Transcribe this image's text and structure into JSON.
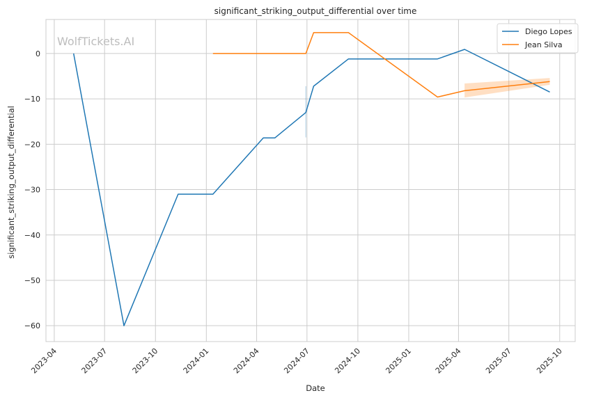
{
  "chart_data": {
    "type": "line",
    "title": "significant_striking_output_differential over time",
    "xlabel": "Date",
    "ylabel": "significant_striking_output_differential",
    "watermark": "WolfTickets.AI",
    "xlim": [
      "2023-03-17",
      "2025-10-29"
    ],
    "ylim": [
      -63.5,
      7.5
    ],
    "x_ticks": [
      "2023-04",
      "2023-07",
      "2023-10",
      "2024-01",
      "2024-04",
      "2024-07",
      "2024-10",
      "2025-01",
      "2025-04",
      "2025-07",
      "2025-10"
    ],
    "y_ticks": [
      0,
      -10,
      -20,
      -30,
      -40,
      -50,
      -60
    ],
    "y_tick_labels": [
      "0",
      "−10",
      "−20",
      "−30",
      "−40",
      "−50",
      "−60"
    ],
    "grid": true,
    "legend_position": "top-right",
    "series": [
      {
        "name": "Diego Lopes",
        "color": "#1f77b4",
        "points": [
          {
            "x": "2023-05-06",
            "y": 0
          },
          {
            "x": "2023-08-05",
            "y": -60
          },
          {
            "x": "2023-11-11",
            "y": -31
          },
          {
            "x": "2024-01-13",
            "y": -31
          },
          {
            "x": "2024-04-13",
            "y": -18.6
          },
          {
            "x": "2024-05-04",
            "y": -18.6
          },
          {
            "x": "2024-06-29",
            "y": -13
          },
          {
            "x": "2024-07-13",
            "y": -7.2
          },
          {
            "x": "2024-09-14",
            "y": -1.2
          },
          {
            "x": "2025-02-22",
            "y": -1.2
          },
          {
            "x": "2025-04-12",
            "y": 0.9
          },
          {
            "x": "2025-09-13",
            "y": -8.5
          }
        ],
        "ci_bands": [
          {
            "x": [
              "2024-06-29",
              "2024-06-29"
            ],
            "lower": [
              -18.5,
              -18.5
            ],
            "upper": [
              -7.2,
              -7.2
            ]
          }
        ]
      },
      {
        "name": "Jean Silva",
        "color": "#ff7f0e",
        "points": [
          {
            "x": "2024-01-13",
            "y": 0
          },
          {
            "x": "2024-06-29",
            "y": 0
          },
          {
            "x": "2024-07-13",
            "y": 4.6
          },
          {
            "x": "2024-09-14",
            "y": 4.6
          },
          {
            "x": "2025-02-22",
            "y": -9.6
          },
          {
            "x": "2025-04-12",
            "y": -8.2
          },
          {
            "x": "2025-09-13",
            "y": -6.2
          }
        ],
        "ci_bands": [
          {
            "x": [
              "2025-04-12",
              "2025-09-13"
            ],
            "lower": [
              -9.7,
              -6.9
            ],
            "upper": [
              -6.6,
              -5.4
            ]
          }
        ]
      }
    ]
  }
}
